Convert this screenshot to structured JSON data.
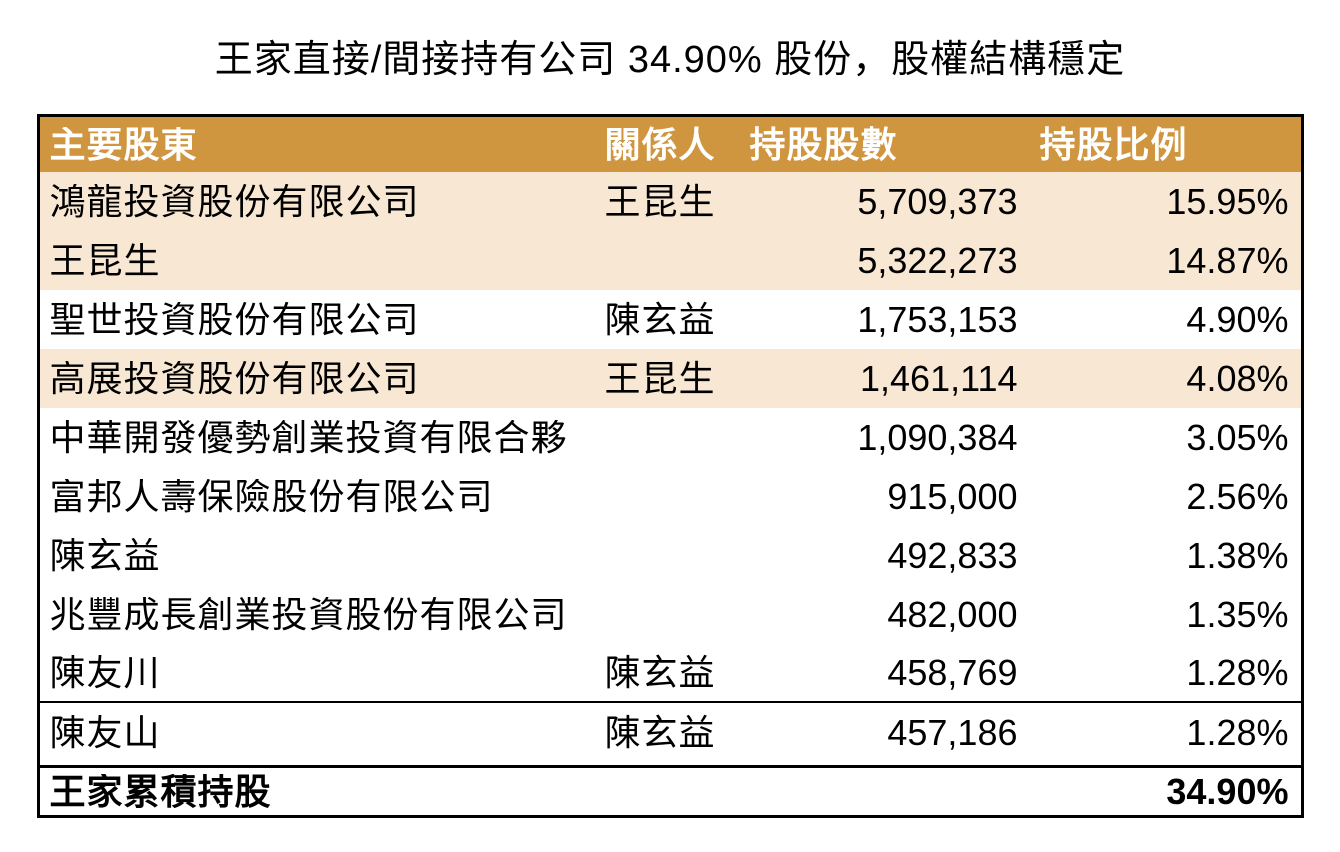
{
  "title": "王家直接/間接持有公司 34.90% 股份，股權結構穩定",
  "table": {
    "columns": [
      "主要股東",
      "關係人",
      "持股股數",
      "持股比例"
    ],
    "rows": [
      {
        "shareholder": "鴻龍投資股份有限公司",
        "related": "王昆生",
        "shares": "5,709,373",
        "pct": "15.95%",
        "highlight": true
      },
      {
        "shareholder": "王昆生",
        "related": "",
        "shares": "5,322,273",
        "pct": "14.87%",
        "highlight": true
      },
      {
        "shareholder": "聖世投資股份有限公司",
        "related": "陳玄益",
        "shares": "1,753,153",
        "pct": "4.90%",
        "highlight": false
      },
      {
        "shareholder": "高展投資股份有限公司",
        "related": "王昆生",
        "shares": "1,461,114",
        "pct": "4.08%",
        "highlight": true
      },
      {
        "shareholder": "中華開發優勢創業投資有限合夥",
        "related": "",
        "shares": "1,090,384",
        "pct": "3.05%",
        "highlight": false
      },
      {
        "shareholder": "富邦人壽保險股份有限公司",
        "related": "",
        "shares": "915,000",
        "pct": "2.56%",
        "highlight": false
      },
      {
        "shareholder": "陳玄益",
        "related": "",
        "shares": "492,833",
        "pct": "1.38%",
        "highlight": false
      },
      {
        "shareholder": "兆豐成長創業投資股份有限公司",
        "related": "",
        "shares": "482,000",
        "pct": "1.35%",
        "highlight": false
      },
      {
        "shareholder": "陳友川",
        "related": "陳玄益",
        "shares": "458,769",
        "pct": "1.28%",
        "highlight": false
      },
      {
        "shareholder": "陳友山",
        "related": "陳玄益",
        "shares": "457,186",
        "pct": "1.28%",
        "highlight": false
      }
    ],
    "footer": {
      "label": "王家累積持股",
      "pct": "34.90%"
    }
  },
  "colors": {
    "header_bg": "#D0953F",
    "highlight_bg": "#F8E8D3",
    "header_text": "#FFFFFF",
    "body_text": "#000000"
  }
}
